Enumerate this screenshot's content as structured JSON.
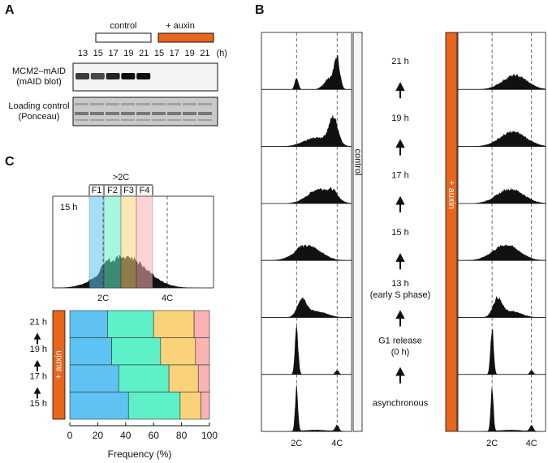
{
  "panel_a": {
    "label": "A",
    "groups": [
      "control",
      "+ auxin"
    ],
    "lanes": [
      "13",
      "15",
      "17",
      "19",
      "21",
      "15",
      "17",
      "19",
      "21"
    ],
    "unit": "(h)",
    "rows": [
      [
        "MCM2–mAID",
        "(mAID blot)"
      ],
      [
        "Loading control",
        "(Ponceau)"
      ]
    ]
  },
  "panel_b": {
    "label": "B",
    "left_strip": "control",
    "right_strip": "+ auxin",
    "steps": [
      [
        "21 h"
      ],
      [
        "19 h"
      ],
      [
        "17 h"
      ],
      [
        "15 h"
      ],
      [
        "13 h",
        "(early S phase)"
      ],
      [
        "G1 release",
        "(0 h)"
      ],
      [
        "asynchronous"
      ]
    ],
    "x_labels": [
      "2C",
      "4C"
    ]
  },
  "panel_c": {
    "label": "C",
    "bracket": ">2C",
    "inset_time": "15 h",
    "x_labels": [
      "2C",
      "4C"
    ],
    "strip": "+ auxin"
  },
  "chart_data": {
    "type": "bar",
    "orientation": "horizontal",
    "stacked": true,
    "categories": [
      "21 h",
      "19 h",
      "17 h",
      "15 h"
    ],
    "series": [
      {
        "name": "F1",
        "color": "#5ec3f2",
        "values": [
          27,
          30,
          35,
          42
        ]
      },
      {
        "name": "F2",
        "color": "#5ef0c8",
        "values": [
          33,
          35,
          36,
          37
        ]
      },
      {
        "name": "F3",
        "color": "#fad27a",
        "values": [
          29,
          25,
          21,
          15
        ]
      },
      {
        "name": "F4",
        "color": "#f9b3b3",
        "values": [
          11,
          10,
          8,
          6
        ]
      }
    ],
    "xlim": [
      0,
      100
    ],
    "xticks": [
      0,
      20,
      40,
      60,
      80,
      100
    ],
    "xlabel": "Frequency (%)"
  }
}
